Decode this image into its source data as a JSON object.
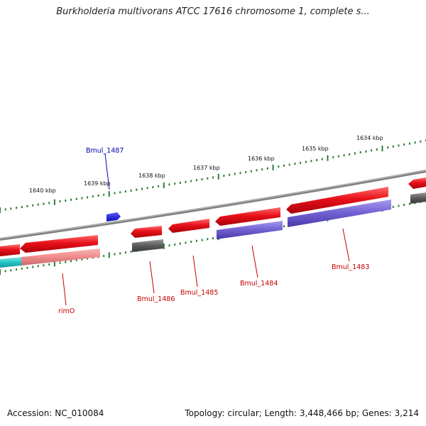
{
  "title": "Burkholderia multivorans ATCC 17616 chromosome 1, complete s...",
  "footer": {
    "accession": "Accession: NC_010084",
    "summary": "Topology: circular; Length: 3,448,466 bp; Genes: 3,214"
  },
  "colors": {
    "forward_gene": "#e8111a",
    "reverse_cds": "#6f5fd0",
    "rna": "#f08a8a",
    "pseudo": "#5a5a5a",
    "tick": "#2e7d32",
    "backbone": "#808080",
    "label_red": "#c40000",
    "label_blue": "#0000b0",
    "small_feature": "#1a1ae0",
    "cyan_feature": "#22c4c4"
  },
  "ticks": {
    "labels": [
      "1640 kbp",
      "1639 kbp",
      "1638 kbp",
      "1637 kbp",
      "1636 kbp",
      "1635 kbp",
      "1634 kbp"
    ]
  },
  "gene_labels": [
    {
      "text": "Bmul_1487",
      "color": "blue"
    },
    {
      "text": "Bmul_1486",
      "color": "red"
    },
    {
      "text": "Bmul_1485",
      "color": "red"
    },
    {
      "text": "Bmul_1484",
      "color": "red"
    },
    {
      "text": "Bmul_1483",
      "color": "red"
    },
    {
      "text": "rimO",
      "color": "red"
    }
  ]
}
